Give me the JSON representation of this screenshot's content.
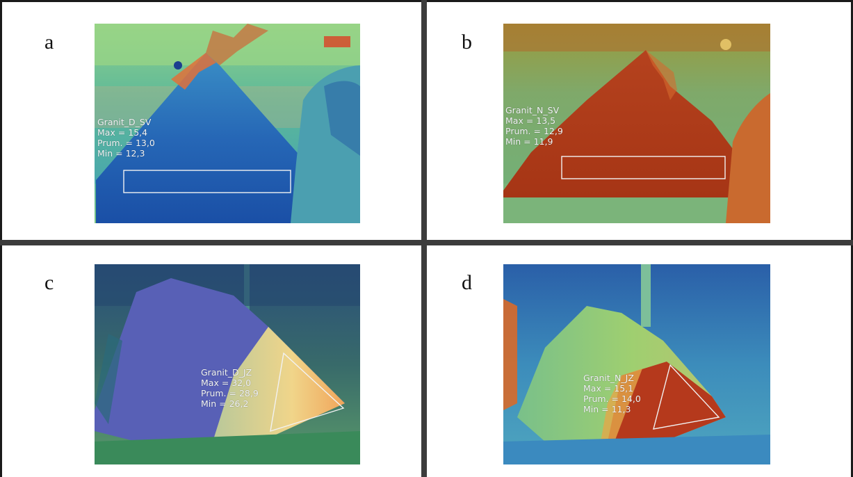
{
  "panels": [
    {
      "letter": "a",
      "label": "Granit_D_SV",
      "max": "Max = 15,4",
      "prum": "Prum. = 13,0",
      "min": "Min = 12,3"
    },
    {
      "letter": "b",
      "label": "Granit_N_SV",
      "max": "Max = 13,5",
      "prum": "Prum. = 12,9",
      "min": "Min = 11,9"
    },
    {
      "letter": "c",
      "label": "Granit_D_JZ",
      "max": "Max = 32,0",
      "prum": "Prum. = 28,9",
      "min": "Min = 26,2"
    },
    {
      "letter": "d",
      "label": "Granit_N_JZ",
      "max": "Max = 15,1",
      "prum": "Prum. = 14,0",
      "min": "Min = 11,3"
    }
  ],
  "palette": {
    "cold": "#1d5fb0",
    "cool": "#39a6c8",
    "mid": "#6fc38a",
    "warm": "#e0a43a",
    "hot": "#c2361c"
  }
}
